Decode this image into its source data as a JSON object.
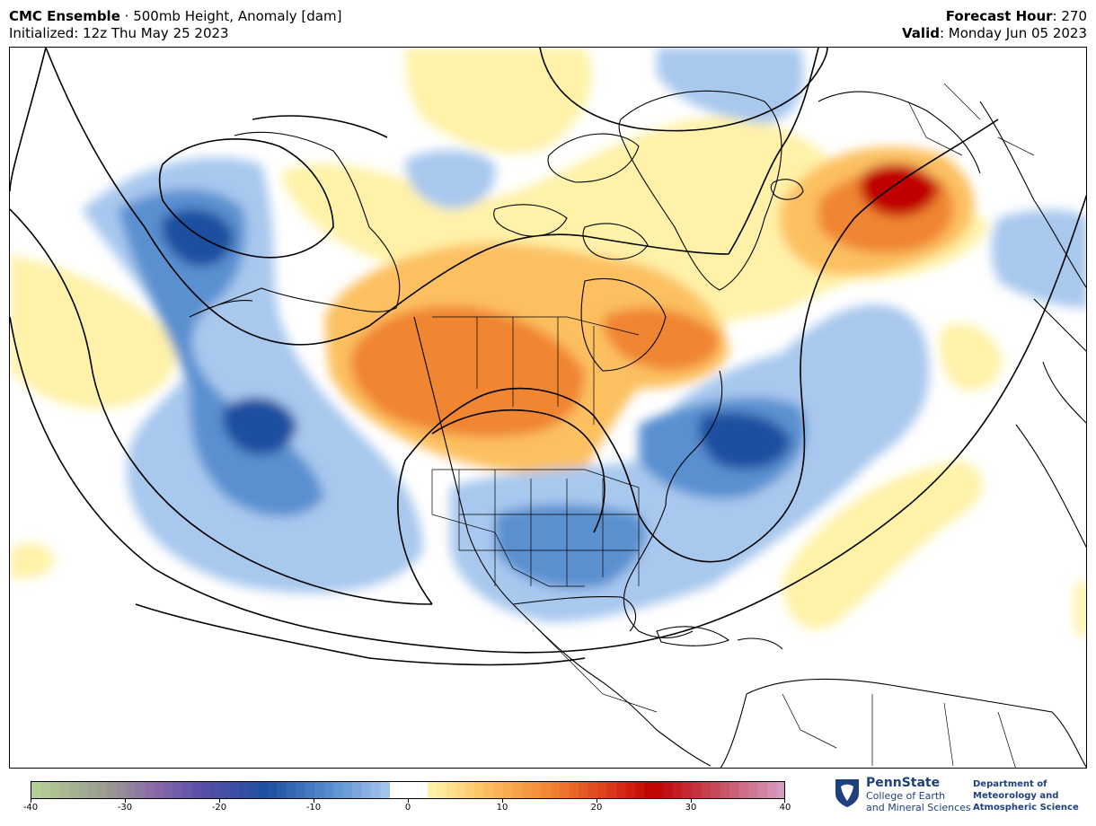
{
  "header": {
    "model": "CMC Ensemble",
    "separator": " · ",
    "product": "500mb Height, Anomaly [dam]",
    "init_label": "Initialized: 12z Thu May 25 2023",
    "fhour_label": "Forecast Hour",
    "fhour_value": ": 270",
    "valid_label": "Valid",
    "valid_value": ": Monday Jun 05 2023"
  },
  "colorbar": {
    "min": -40,
    "max": 40,
    "ticks": [
      -40,
      -30,
      -20,
      -10,
      0,
      10,
      20,
      30,
      40
    ],
    "neutral_band": [
      -2,
      2
    ],
    "stops": [
      {
        "v": -40,
        "color": "#b5d395"
      },
      {
        "v": -32,
        "color": "#9a9a90"
      },
      {
        "v": -27,
        "color": "#8a6aa8"
      },
      {
        "v": -22,
        "color": "#5a4ea8"
      },
      {
        "v": -15,
        "color": "#1e50a0"
      },
      {
        "v": -8,
        "color": "#5a90d0"
      },
      {
        "v": -2,
        "color": "#a8c8ee"
      },
      {
        "v": 2,
        "color": "#fff6b0"
      },
      {
        "v": 8,
        "color": "#fcc060"
      },
      {
        "v": 15,
        "color": "#f08530"
      },
      {
        "v": 22,
        "color": "#d83018"
      },
      {
        "v": 26,
        "color": "#c00000"
      },
      {
        "v": 33,
        "color": "#c85060"
      },
      {
        "v": 40,
        "color": "#d8a0c8"
      }
    ]
  },
  "map_colors": {
    "neg_light": "#a8c8ee",
    "neg_mid": "#5a90d0",
    "neg_dark": "#1e50a0",
    "pos_light": "#fff2a8",
    "pos_mid": "#fcc060",
    "pos_strong": "#f08530",
    "pos_max": "#c00000"
  },
  "logo": {
    "name": "PennState",
    "sub1": "College of Earth",
    "sub2": "and Mineral Sciences",
    "dept1": "Department of",
    "dept2": "Meteorology and",
    "dept3": "Atmospheric Science"
  }
}
